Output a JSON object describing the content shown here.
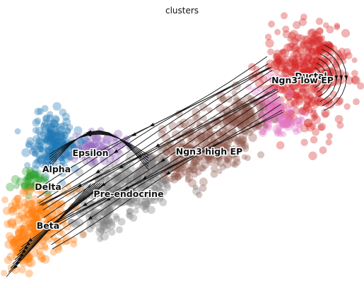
{
  "chart_data": {
    "type": "scatter",
    "title": "clusters",
    "xlabel": "",
    "ylabel": "",
    "grid": false,
    "legend": "on data",
    "overlay": "velocity streamlines",
    "clusters": [
      {
        "name": "Ductal",
        "color": "#d62728"
      },
      {
        "name": "Ngn3 low EP",
        "color": "#e377c2"
      },
      {
        "name": "Ngn3 high EP",
        "color": "#8c564b"
      },
      {
        "name": "Pre-endocrine",
        "color": "#7f7f7f"
      },
      {
        "name": "Beta",
        "color": "#ff7f0e"
      },
      {
        "name": "Alpha",
        "color": "#1f77b4"
      },
      {
        "name": "Delta",
        "color": "#2ca02c"
      },
      {
        "name": "Epsilon",
        "color": "#9467bd"
      }
    ]
  }
}
